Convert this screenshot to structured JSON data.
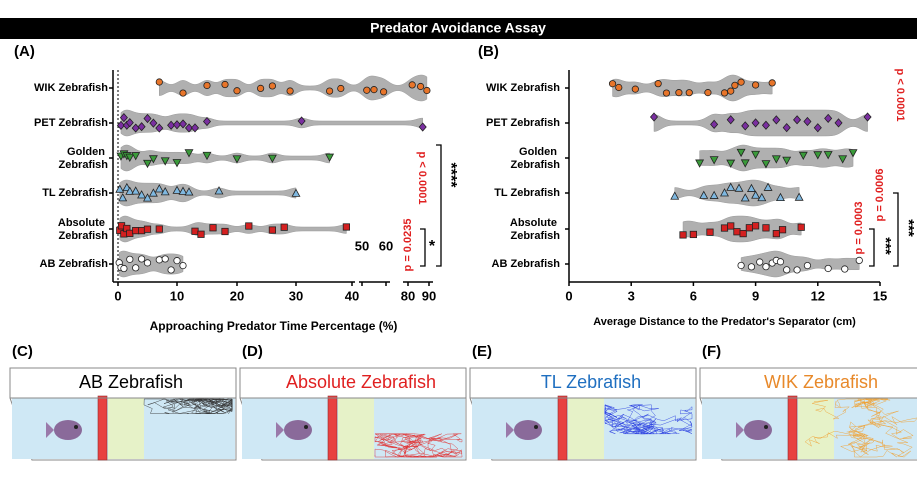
{
  "header": {
    "title": "Predator Avoidance Assay"
  },
  "chart_data": [
    {
      "type": "violin",
      "panel": "(A)",
      "xlabel": "Approaching Predator Time Percentage (%)",
      "xlim": [
        0,
        90
      ],
      "xticks": [
        0,
        10,
        20,
        30,
        40,
        50,
        60,
        80,
        90
      ],
      "series": [
        {
          "name": "WIK Zebrafish",
          "color": "#e8752a",
          "marker": "circle",
          "values": [
            7,
            11,
            15,
            18,
            20,
            24,
            26,
            29,
            36,
            38,
            52,
            55,
            59,
            82,
            86,
            89
          ]
        },
        {
          "name": "PET Zebrafish",
          "color": "#7a2fa0",
          "marker": "diamond",
          "values": [
            0.5,
            1,
            1.5,
            2,
            3,
            4,
            5,
            6,
            7,
            9,
            10,
            11,
            12,
            13,
            15,
            31,
            87
          ]
        },
        {
          "name": "Golden Zebrafish",
          "color": "#3a9a3a",
          "marker": "triangle-down",
          "values": [
            0.5,
            1,
            1.5,
            2,
            3,
            5,
            6,
            8,
            10,
            12,
            15,
            20,
            26,
            36
          ]
        },
        {
          "name": "TL Zebrafish",
          "color": "#7fb8e0",
          "marker": "triangle-up",
          "values": [
            0.3,
            0.8,
            1.5,
            2,
            3,
            4,
            5,
            6,
            7,
            8,
            10,
            11,
            12,
            17,
            30
          ]
        },
        {
          "name": "Absolute Zebrafish",
          "color": "#d42020",
          "marker": "square",
          "values": [
            0.3,
            0.6,
            1,
            1.5,
            2,
            3,
            4,
            5,
            7,
            13,
            14,
            16,
            18,
            22,
            26,
            28,
            39
          ]
        },
        {
          "name": "AB Zebrafish",
          "color": "#ffffff",
          "marker": "circle",
          "values": [
            0.2,
            0.5,
            1,
            2,
            3,
            4,
            5,
            7,
            8,
            9,
            10,
            11
          ]
        }
      ],
      "annotations": [
        {
          "text": "p < 0.0001",
          "color": "#e02020"
        },
        {
          "text": "****",
          "color": "#000000"
        },
        {
          "text": "p = 0.0235",
          "color": "#e02020"
        },
        {
          "text": "*",
          "color": "#000000"
        }
      ]
    },
    {
      "type": "violin",
      "panel": "(B)",
      "xlabel": "Average Distance to the Predator's Separator (cm)",
      "xlim": [
        0,
        15
      ],
      "xticks": [
        0,
        3,
        6,
        9,
        12,
        15
      ],
      "series": [
        {
          "name": "WIK Zebrafish",
          "color": "#e8752a",
          "marker": "circle",
          "values": [
            2.1,
            2.4,
            3.2,
            4.3,
            4.7,
            5.3,
            5.8,
            6.7,
            7.5,
            7.8,
            8.0,
            8.3,
            9.0,
            9.8
          ]
        },
        {
          "name": "PET Zebrafish",
          "color": "#7a2fa0",
          "marker": "diamond",
          "values": [
            4.1,
            7.0,
            7.8,
            8.5,
            9.0,
            9.5,
            10.0,
            10.5,
            11.0,
            11.5,
            12.0,
            12.5,
            13.0,
            14.4
          ]
        },
        {
          "name": "Golden Zebrafish",
          "color": "#3a9a3a",
          "marker": "triangle-down",
          "values": [
            6.3,
            7.0,
            7.8,
            8.3,
            8.5,
            9.0,
            9.5,
            10,
            10.5,
            11.3,
            12,
            12.5,
            13.2,
            13.7
          ]
        },
        {
          "name": "TL Zebrafish",
          "color": "#7fb8e0",
          "marker": "triangle-up",
          "values": [
            5.1,
            6.5,
            7.0,
            7.5,
            7.8,
            8.2,
            8.5,
            8.8,
            9.0,
            9.3,
            9.6,
            10.2,
            11.1
          ]
        },
        {
          "name": "Absolute Zebrafish",
          "color": "#d42020",
          "marker": "square",
          "values": [
            5.5,
            6,
            6.8,
            7.5,
            7.8,
            8.1,
            8.4,
            8.7,
            9.0,
            9.5,
            10,
            10.3,
            11.2
          ]
        },
        {
          "name": "AB Zebrafish",
          "color": "#ffffff",
          "marker": "circle",
          "values": [
            8.3,
            8.8,
            9.2,
            9.5,
            9.8,
            10.0,
            10.2,
            10.5,
            11,
            11.5,
            12.5,
            13.3,
            14.0
          ]
        }
      ],
      "annotations": [
        {
          "text": "p < 0.0001",
          "color": "#e02020"
        },
        {
          "text": "p = 0.0006",
          "color": "#e02020"
        },
        {
          "text": "p = 0.0003",
          "color": "#e02020"
        },
        {
          "text": "***",
          "color": "#000000"
        },
        {
          "text": "***",
          "color": "#000000"
        }
      ]
    }
  ],
  "panels": [
    {
      "label": "(C)",
      "title": "AB Zebrafish",
      "color": "#000000",
      "trace": "#333333"
    },
    {
      "label": "(D)",
      "title": "Absolute Zebrafish",
      "color": "#e02020",
      "trace": "#e03030"
    },
    {
      "label": "(E)",
      "title": "TL Zebrafish",
      "color": "#1f6fc0",
      "trace": "#2a3fe0"
    },
    {
      "label": "(F)",
      "title": "WIK Zebrafish",
      "color": "#e8892a",
      "trace": "#f0a030"
    }
  ]
}
